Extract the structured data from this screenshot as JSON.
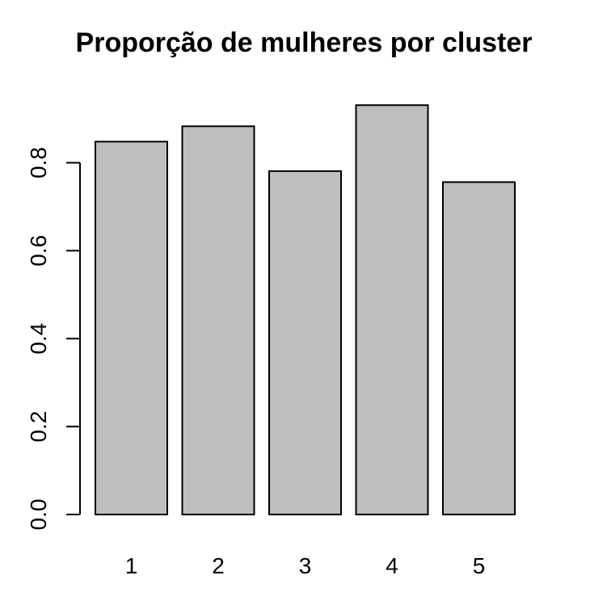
{
  "chart_data": {
    "type": "bar",
    "title": "Proporção de mulheres por cluster",
    "xlabel": "",
    "ylabel": "",
    "categories": [
      "1",
      "2",
      "3",
      "4",
      "5"
    ],
    "values": [
      0.848,
      0.883,
      0.781,
      0.931,
      0.756
    ],
    "ylim": [
      0,
      0.95
    ],
    "yticks": [
      0.0,
      0.2,
      0.4,
      0.6,
      0.8
    ],
    "ytick_labels": [
      "0.0",
      "0.2",
      "0.4",
      "0.6",
      "0.8"
    ],
    "bar_color": "#bebebe",
    "grid": false,
    "legend": "none"
  }
}
